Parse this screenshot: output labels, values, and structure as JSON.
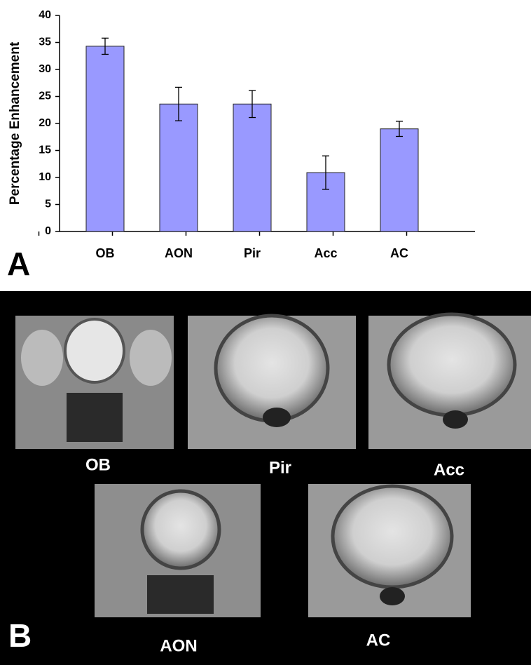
{
  "chart_data": {
    "type": "bar",
    "ylabel": "Percentage Enhancement",
    "categories": [
      "OB",
      "AON",
      "Pir",
      "Acc",
      "AC"
    ],
    "values": [
      34.3,
      23.6,
      23.6,
      10.9,
      19
    ],
    "errors": [
      1.5,
      3.1,
      2.5,
      3.1,
      1.4
    ],
    "color": "#9999ff",
    "ylim": [
      0,
      40
    ],
    "yticks": [
      0,
      5,
      10,
      15,
      20,
      25,
      30,
      35,
      40
    ],
    "grid": false
  },
  "panel_labels": [
    "A",
    "B"
  ],
  "images": [
    {
      "label": "OB"
    },
    {
      "label": "Pir"
    },
    {
      "label": "Acc"
    },
    {
      "label": "AON"
    },
    {
      "label": "AC"
    }
  ]
}
